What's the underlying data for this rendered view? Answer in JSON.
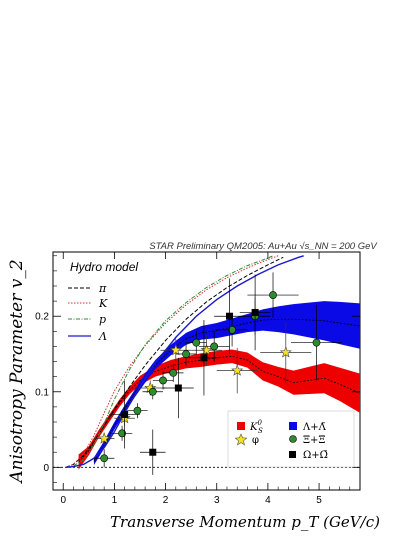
{
  "chart_data": {
    "type": "scatter",
    "header": "STAR Preliminary QM2005: Au+Au √s_NN = 200 GeV",
    "xlabel": "Transverse Momentum p_T (GeV/c)",
    "ylabel": "Anisotropy Parameter v_2",
    "xlim": [
      -0.2,
      5.8
    ],
    "ylim": [
      -0.03,
      0.285
    ],
    "x_ticks": [
      "0",
      "1",
      "2",
      "3",
      "4",
      "5"
    ],
    "y_ticks": [
      "0",
      "0.1",
      "0.2"
    ],
    "grid": false,
    "model_title": "Hydro model",
    "hydro_curves": [
      {
        "name": "π",
        "color": "#000000",
        "dash": "4,2",
        "points": [
          [
            0.05,
            0.0
          ],
          [
            0.2,
            0.004
          ],
          [
            0.4,
            0.016
          ],
          [
            0.6,
            0.034
          ],
          [
            0.8,
            0.055
          ],
          [
            1.0,
            0.077
          ],
          [
            1.3,
            0.107
          ],
          [
            1.6,
            0.135
          ],
          [
            2.0,
            0.168
          ],
          [
            2.4,
            0.196
          ],
          [
            2.8,
            0.219
          ],
          [
            3.2,
            0.238
          ],
          [
            3.6,
            0.254
          ],
          [
            4.0,
            0.268
          ],
          [
            4.3,
            0.278
          ]
        ]
      },
      {
        "name": "K",
        "color": "#cc3333",
        "dash": "1.5,1.5",
        "points": [
          [
            0.05,
            0.0
          ],
          [
            0.2,
            0.004
          ],
          [
            0.4,
            0.018
          ],
          [
            0.6,
            0.042
          ],
          [
            0.8,
            0.072
          ],
          [
            1.0,
            0.101
          ],
          [
            1.3,
            0.134
          ],
          [
            1.6,
            0.161
          ],
          [
            2.0,
            0.191
          ],
          [
            2.4,
            0.215
          ],
          [
            2.8,
            0.235
          ],
          [
            3.2,
            0.251
          ],
          [
            3.6,
            0.264
          ],
          [
            4.0,
            0.275
          ],
          [
            4.2,
            0.28
          ]
        ]
      },
      {
        "name": "p",
        "color": "#2e8b2e",
        "dash": "4,1.5,1,1.5",
        "points": [
          [
            0.05,
            0.0
          ],
          [
            0.2,
            0.002
          ],
          [
            0.4,
            0.01
          ],
          [
            0.6,
            0.03
          ],
          [
            0.8,
            0.058
          ],
          [
            1.0,
            0.09
          ],
          [
            1.3,
            0.13
          ],
          [
            1.6,
            0.162
          ],
          [
            2.0,
            0.194
          ],
          [
            2.4,
            0.218
          ],
          [
            2.8,
            0.238
          ],
          [
            3.2,
            0.254
          ],
          [
            3.6,
            0.267
          ],
          [
            4.0,
            0.277
          ],
          [
            4.1,
            0.28
          ]
        ]
      },
      {
        "name": "Λ",
        "color": "#1a1acc",
        "dash": "",
        "points": [
          [
            0.05,
            0.0
          ],
          [
            0.2,
            0.001
          ],
          [
            0.4,
            0.004
          ],
          [
            0.6,
            0.012
          ],
          [
            0.8,
            0.026
          ],
          [
            1.0,
            0.047
          ],
          [
            1.2,
            0.072
          ],
          [
            1.5,
            0.107
          ],
          [
            1.8,
            0.138
          ],
          [
            2.2,
            0.172
          ],
          [
            2.6,
            0.2
          ],
          [
            3.0,
            0.222
          ],
          [
            3.4,
            0.24
          ],
          [
            3.8,
            0.255
          ],
          [
            4.2,
            0.268
          ],
          [
            4.6,
            0.278
          ],
          [
            4.7,
            0.28
          ]
        ]
      }
    ],
    "bands": [
      {
        "name": "K⁰s",
        "color": "#ee0000",
        "line_color": "#000000",
        "points": [
          [
            0.3,
            0.007,
            0.01
          ],
          [
            0.5,
            0.022,
            0.006
          ],
          [
            0.7,
            0.045,
            0.005
          ],
          [
            0.9,
            0.065,
            0.005
          ],
          [
            1.1,
            0.085,
            0.005
          ],
          [
            1.3,
            0.102,
            0.005
          ],
          [
            1.5,
            0.115,
            0.006
          ],
          [
            1.8,
            0.127,
            0.007
          ],
          [
            2.1,
            0.134,
            0.008
          ],
          [
            2.4,
            0.139,
            0.008
          ],
          [
            2.7,
            0.142,
            0.009
          ],
          [
            3.0,
            0.145,
            0.009
          ],
          [
            3.3,
            0.147,
            0.009
          ],
          [
            3.6,
            0.142,
            0.01
          ],
          [
            3.9,
            0.127,
            0.012
          ],
          [
            4.2,
            0.12,
            0.013
          ],
          [
            4.5,
            0.112,
            0.016
          ],
          [
            4.8,
            0.115,
            0.018
          ],
          [
            5.1,
            0.118,
            0.02
          ],
          [
            5.4,
            0.11,
            0.022
          ],
          [
            5.8,
            0.098,
            0.026
          ]
        ]
      },
      {
        "name": "Λ+Λ̄",
        "color": "#0a0ae6",
        "line_color": "#000000",
        "points": [
          [
            0.6,
            0.008,
            0.005
          ],
          [
            0.8,
            0.03,
            0.005
          ],
          [
            1.0,
            0.055,
            0.005
          ],
          [
            1.2,
            0.077,
            0.005
          ],
          [
            1.4,
            0.098,
            0.005
          ],
          [
            1.6,
            0.118,
            0.006
          ],
          [
            1.8,
            0.136,
            0.006
          ],
          [
            2.1,
            0.155,
            0.007
          ],
          [
            2.4,
            0.17,
            0.008
          ],
          [
            2.7,
            0.178,
            0.009
          ],
          [
            3.0,
            0.181,
            0.01
          ],
          [
            3.3,
            0.186,
            0.011
          ],
          [
            3.6,
            0.191,
            0.012
          ],
          [
            3.9,
            0.195,
            0.014
          ],
          [
            4.2,
            0.196,
            0.017
          ],
          [
            4.5,
            0.196,
            0.02
          ],
          [
            4.8,
            0.195,
            0.023
          ],
          [
            5.1,
            0.194,
            0.026
          ],
          [
            5.4,
            0.191,
            0.028
          ],
          [
            5.8,
            0.187,
            0.03
          ]
        ]
      }
    ],
    "series": [
      {
        "name": "φ",
        "marker": "star",
        "color": "#f5e11e",
        "points": [
          [
            0.8,
            0.038,
            0.008,
            0.2
          ],
          [
            1.2,
            0.065,
            0.01,
            0.2
          ],
          [
            1.7,
            0.105,
            0.01,
            0.3
          ],
          [
            2.2,
            0.155,
            0.015,
            0.3
          ],
          [
            2.8,
            0.155,
            0.02,
            0.3
          ],
          [
            3.4,
            0.128,
            0.03,
            0.4
          ],
          [
            4.35,
            0.152,
            0.04,
            0.5
          ]
        ]
      },
      {
        "name": "Ξ+Ξ̄",
        "marker": "circle",
        "color": "#2e8b2e",
        "points": [
          [
            0.8,
            0.012,
            0.012,
            0.2
          ],
          [
            1.15,
            0.045,
            0.01,
            0.2
          ],
          [
            1.45,
            0.075,
            0.01,
            0.2
          ],
          [
            1.75,
            0.1,
            0.01,
            0.2
          ],
          [
            1.95,
            0.115,
            0.012,
            0.2
          ],
          [
            2.15,
            0.125,
            0.012,
            0.2
          ],
          [
            2.4,
            0.15,
            0.015,
            0.2
          ],
          [
            2.6,
            0.165,
            0.016,
            0.2
          ],
          [
            2.95,
            0.16,
            0.02,
            0.3
          ],
          [
            3.3,
            0.182,
            0.022,
            0.3
          ],
          [
            3.75,
            0.2,
            0.025,
            0.3
          ],
          [
            4.1,
            0.228,
            0.03,
            0.5
          ],
          [
            4.95,
            0.165,
            0.05,
            0.5
          ]
        ]
      },
      {
        "name": "Ω+Ω̄",
        "marker": "square",
        "color": "#000000",
        "points": [
          [
            1.2,
            0.07,
            0.045,
            0.3
          ],
          [
            1.75,
            0.02,
            0.03,
            0.25
          ],
          [
            2.25,
            0.105,
            0.04,
            0.3
          ],
          [
            2.75,
            0.145,
            0.05,
            0.3
          ],
          [
            3.25,
            0.2,
            0.05,
            0.3
          ],
          [
            3.75,
            0.205,
            0.05,
            0.3
          ]
        ]
      }
    ],
    "legend_hydro_labels": [
      "π",
      "K",
      "p",
      "Λ"
    ],
    "legend_data_labels": {
      "k0s": "K",
      "k0s_sup": "0",
      "k0s_sub": "S",
      "phi": "φ",
      "lambda": "Λ+Λ̄",
      "xi": "Ξ+Ξ̄",
      "omega": "Ω+Ω̄"
    },
    "legend_placement": "bottom-right"
  }
}
